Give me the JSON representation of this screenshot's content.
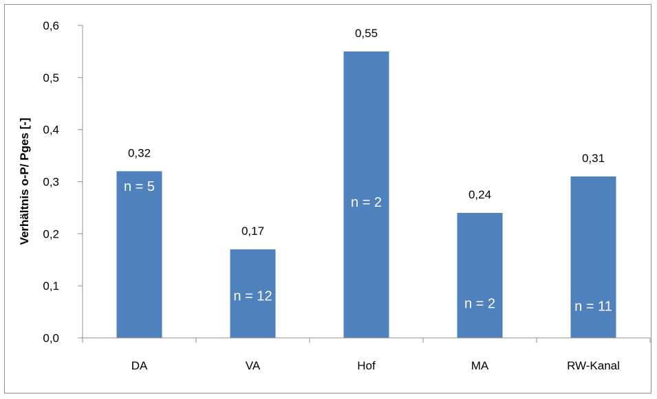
{
  "chart_data": {
    "type": "bar",
    "title": "",
    "xlabel": "",
    "ylabel": "Verhältnis o-P/ Pges [-]",
    "ylim": [
      0,
      0.6
    ],
    "yticks": [
      0.0,
      0.1,
      0.2,
      0.3,
      0.4,
      0.5,
      0.6
    ],
    "ytick_labels": [
      "0,0",
      "0,1",
      "0,2",
      "0,3",
      "0,4",
      "0,5",
      "0,6"
    ],
    "categories": [
      "DA",
      "VA",
      "Hof",
      "MA",
      "RW-Kanal"
    ],
    "values": [
      0.32,
      0.17,
      0.55,
      0.24,
      0.31
    ],
    "value_labels": [
      "0,32",
      "0,17",
      "0,55",
      "0,24",
      "0,31"
    ],
    "n_labels": [
      "n = 5",
      "n = 12",
      "n = 2",
      "n = 2",
      "n = 11"
    ],
    "n_label_levels": [
      0.29,
      0.08,
      0.26,
      0.065,
      0.06
    ],
    "grid": false,
    "legend": "none",
    "bar_color": "#4F81BD",
    "n_label_color": "#ffffff",
    "text_color": "#000000",
    "axis_color": "#8c8c8c"
  }
}
